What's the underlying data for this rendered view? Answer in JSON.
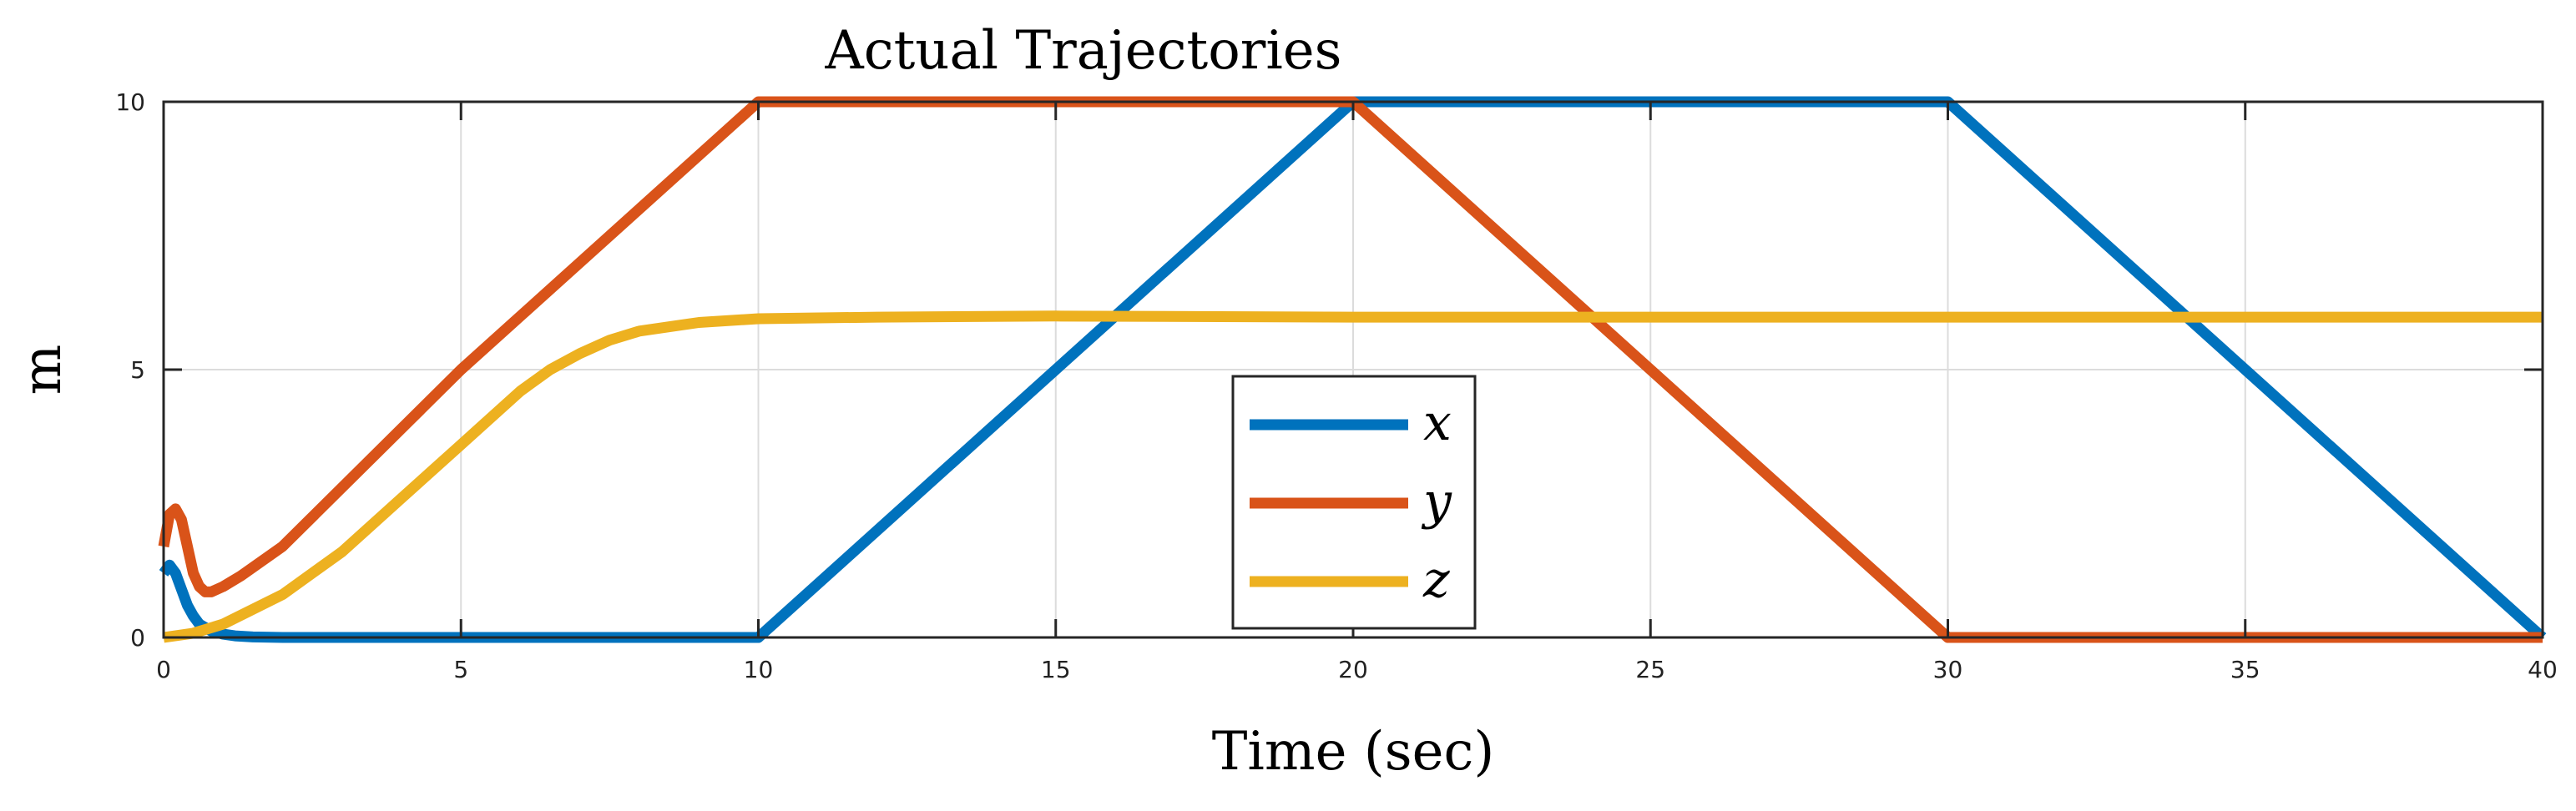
{
  "chart_data": {
    "type": "line",
    "title": "Actual Trajectories",
    "xlabel": "Time (sec)",
    "ylabel": "m",
    "xlim": [
      0,
      40
    ],
    "ylim": [
      0,
      10
    ],
    "xticks": [
      "0",
      "5",
      "10",
      "15",
      "20",
      "25",
      "30",
      "35",
      "40"
    ],
    "yticks": [
      "0",
      "5",
      "10"
    ],
    "grid": true,
    "legend_position": "bottom-center",
    "series": [
      {
        "name": "x",
        "color": "#0072BD",
        "x": [
          0,
          0.1,
          0.2,
          0.3,
          0.4,
          0.5,
          0.6,
          0.8,
          1.0,
          1.2,
          1.5,
          2.0,
          3.0,
          5.0,
          10.0,
          20.0,
          30.0,
          40.0
        ],
        "y": [
          1.2,
          1.35,
          1.2,
          0.9,
          0.6,
          0.4,
          0.25,
          0.12,
          0.06,
          0.03,
          0.01,
          0.0,
          0.0,
          0.0,
          0.0,
          10.0,
          10.0,
          0.0
        ]
      },
      {
        "name": "y",
        "color": "#D95319",
        "x": [
          0,
          0.1,
          0.2,
          0.3,
          0.4,
          0.5,
          0.6,
          0.7,
          0.8,
          1.0,
          1.3,
          2.0,
          5.0,
          10.0,
          20.0,
          30.0,
          40.0
        ],
        "y": [
          1.7,
          2.3,
          2.4,
          2.2,
          1.7,
          1.2,
          0.95,
          0.85,
          0.85,
          0.95,
          1.15,
          1.7,
          5.0,
          10.0,
          10.0,
          0.0,
          0.0
        ]
      },
      {
        "name": "z",
        "color": "#EDB120",
        "x": [
          0,
          0.5,
          1.0,
          2.0,
          3.0,
          4.0,
          5.0,
          6.0,
          6.5,
          7.0,
          7.5,
          8.0,
          9.0,
          10.0,
          12.0,
          15.0,
          20.0,
          30.0,
          40.0
        ],
        "y": [
          0.0,
          0.08,
          0.25,
          0.8,
          1.6,
          2.6,
          3.6,
          4.6,
          5.0,
          5.3,
          5.55,
          5.72,
          5.88,
          5.95,
          5.98,
          6.0,
          5.98,
          5.98,
          5.98
        ]
      }
    ]
  }
}
